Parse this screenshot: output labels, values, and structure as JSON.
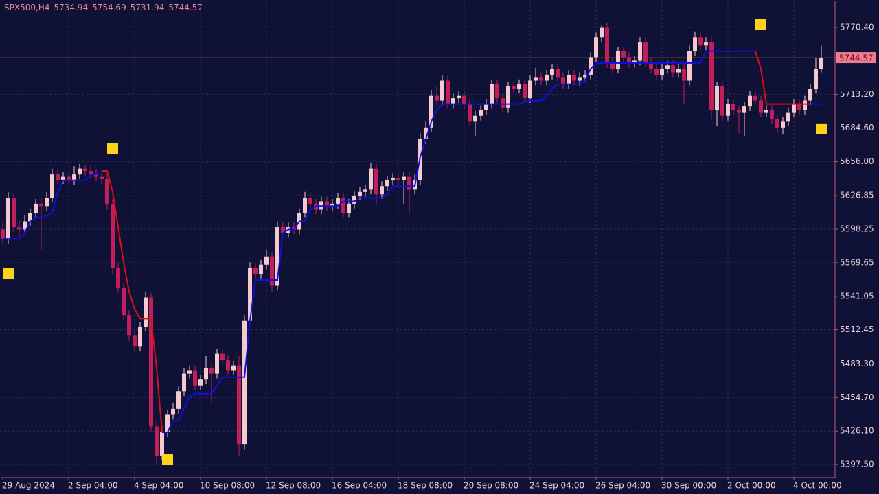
{
  "chart_data": {
    "type": "candlestick",
    "symbol": "SPX500,H4",
    "categories": [
      "29 Aug 2024",
      null,
      null,
      null,
      null,
      null,
      null,
      null,
      null,
      null,
      null,
      null,
      "2 Sep 04:00",
      null,
      null,
      null,
      null,
      null,
      null,
      null,
      null,
      null,
      null,
      null,
      "4 Sep 04:00",
      null,
      null,
      null,
      null,
      null,
      null,
      null,
      null,
      null,
      null,
      null,
      "10 Sep 08:00",
      null,
      null,
      null,
      null,
      null,
      null,
      null,
      null,
      null,
      null,
      null,
      "12 Sep 08:00",
      null,
      null,
      null,
      null,
      null,
      null,
      null,
      null,
      null,
      null,
      null,
      "16 Sep 04:00",
      null,
      null,
      null,
      null,
      null,
      null,
      null,
      null,
      null,
      null,
      null,
      "18 Sep 08:00",
      null,
      null,
      null,
      null,
      null,
      null,
      null,
      null,
      null,
      null,
      null,
      "20 Sep 08:00",
      null,
      null,
      null,
      null,
      null,
      null,
      null,
      null,
      null,
      null,
      null,
      "24 Sep 04:00",
      null,
      null,
      null,
      null,
      null,
      null,
      null,
      null,
      null,
      null,
      null,
      "26 Sep 04:00",
      null,
      null,
      null,
      null,
      null,
      null,
      null,
      null,
      null,
      null,
      null,
      "30 Sep 00:00",
      null,
      null,
      null,
      null,
      null,
      null,
      null,
      null,
      null,
      null,
      null,
      "2 Oct 00:00",
      null,
      null,
      null,
      null,
      null,
      null,
      null,
      null,
      null,
      null,
      null,
      "4 Oct 00:00",
      null,
      null,
      null,
      null,
      null
    ],
    "open": [
      5598,
      5590,
      5625,
      5600,
      5598,
      5605,
      5612,
      5620,
      5618,
      5625,
      5645,
      5640,
      5643,
      5640,
      5645,
      5650,
      5648,
      5645,
      5643,
      5641,
      5620,
      5565,
      5548,
      5525,
      5508,
      5498,
      5515,
      5540,
      5430,
      5405,
      5425,
      5440,
      5445,
      5460,
      5475,
      5478,
      5465,
      5470,
      5480,
      5475,
      5492,
      5487,
      5478,
      5482,
      5415,
      5520,
      5565,
      5560,
      5568,
      5575,
      5550,
      5600,
      5595,
      5600,
      5598,
      5612,
      5625,
      5620,
      5615,
      5622,
      5618,
      5620,
      5625,
      5612,
      5620,
      5627,
      5630,
      5632,
      5650,
      5628,
      5635,
      5640,
      5642,
      5640,
      5643,
      5632,
      5640,
      5675,
      5685,
      5712,
      5708,
      5725,
      5705,
      5710,
      5712,
      5705,
      5690,
      5695,
      5700,
      5705,
      5722,
      5710,
      5702,
      5720,
      5718,
      5722,
      5710,
      5725,
      5728,
      5725,
      5730,
      5735,
      5728,
      5722,
      5730,
      5725,
      5728,
      5730,
      5745,
      5762,
      5770,
      5740,
      5735,
      5750,
      5745,
      5740,
      5742,
      5758,
      5740,
      5735,
      5730,
      5735,
      5738,
      5732,
      5735,
      5725,
      5750,
      5762,
      5755,
      5758,
      5700,
      5720,
      5695,
      5705,
      5700,
      5698,
      5703,
      5712,
      5708,
      5698,
      5700,
      5692,
      5685,
      5690,
      5698,
      5705,
      5700,
      5708,
      5718,
      5734.94
    ],
    "high": [
      5604,
      5630,
      5629,
      5606,
      5610,
      5616,
      5624,
      5625,
      5630,
      5650,
      5649,
      5647,
      5646,
      5652,
      5654,
      5653,
      5652,
      5649,
      5646,
      5645,
      5624,
      5570,
      5552,
      5529,
      5512,
      5519,
      5545,
      5544,
      5434,
      5430,
      5444,
      5450,
      5464,
      5480,
      5482,
      5482,
      5474,
      5490,
      5484,
      5496,
      5496,
      5491,
      5486,
      5490,
      5525,
      5570,
      5569,
      5572,
      5580,
      5579,
      5605,
      5604,
      5604,
      5604,
      5616,
      5630,
      5629,
      5624,
      5626,
      5626,
      5624,
      5629,
      5629,
      5624,
      5631,
      5634,
      5636,
      5655,
      5654,
      5639,
      5644,
      5646,
      5646,
      5647,
      5647,
      5645,
      5680,
      5690,
      5717,
      5720,
      5730,
      5729,
      5714,
      5716,
      5716,
      5709,
      5699,
      5704,
      5709,
      5726,
      5726,
      5714,
      5724,
      5724,
      5726,
      5726,
      5730,
      5736,
      5732,
      5734,
      5739,
      5739,
      5732,
      5734,
      5734,
      5732,
      5734,
      5749,
      5766,
      5772,
      5774,
      5744,
      5754,
      5754,
      5749,
      5746,
      5762,
      5762,
      5744,
      5739,
      5739,
      5742,
      5742,
      5739,
      5739,
      5755,
      5767,
      5766,
      5762,
      5762,
      5724,
      5724,
      5709,
      5709,
      5704,
      5707,
      5716,
      5716,
      5712,
      5704,
      5704,
      5696,
      5694,
      5702,
      5709,
      5709,
      5712,
      5722,
      5744,
      5754.69
    ],
    "low": [
      5585,
      5586,
      5596,
      5592,
      5594,
      5601,
      5608,
      5580,
      5614,
      5621,
      5636,
      5637,
      5636,
      5636,
      5641,
      5644,
      5641,
      5639,
      5636,
      5615,
      5560,
      5544,
      5520,
      5503,
      5494,
      5494,
      5511,
      5425,
      5398,
      5401,
      5421,
      5436,
      5441,
      5456,
      5471,
      5461,
      5461,
      5466,
      5450,
      5471,
      5483,
      5474,
      5474,
      5405,
      5410,
      5516,
      5556,
      5556,
      5564,
      5545,
      5546,
      5591,
      5591,
      5594,
      5594,
      5608,
      5616,
      5611,
      5611,
      5614,
      5614,
      5616,
      5608,
      5608,
      5616,
      5623,
      5626,
      5628,
      5620,
      5624,
      5631,
      5636,
      5636,
      5620,
      5612,
      5628,
      5636,
      5671,
      5681,
      5704,
      5704,
      5701,
      5701,
      5706,
      5701,
      5686,
      5678,
      5691,
      5696,
      5701,
      5706,
      5698,
      5698,
      5714,
      5714,
      5706,
      5706,
      5721,
      5721,
      5721,
      5726,
      5724,
      5718,
      5718,
      5721,
      5720,
      5724,
      5726,
      5741,
      5758,
      5736,
      5731,
      5731,
      5741,
      5736,
      5736,
      5738,
      5736,
      5731,
      5726,
      5726,
      5731,
      5728,
      5728,
      5705,
      5721,
      5746,
      5751,
      5751,
      5692,
      5686,
      5690,
      5691,
      5696,
      5680,
      5678,
      5699,
      5704,
      5694,
      5694,
      5688,
      5681,
      5679,
      5686,
      5694,
      5696,
      5696,
      5704,
      5714,
      5731.94
    ],
    "close": [
      5590,
      5625,
      5600,
      5598,
      5605,
      5612,
      5620,
      5618,
      5625,
      5645,
      5640,
      5643,
      5640,
      5645,
      5650,
      5648,
      5645,
      5643,
      5641,
      5620,
      5565,
      5548,
      5525,
      5508,
      5498,
      5515,
      5540,
      5430,
      5405,
      5425,
      5440,
      5445,
      5460,
      5475,
      5478,
      5465,
      5470,
      5480,
      5475,
      5492,
      5487,
      5478,
      5482,
      5415,
      5520,
      5565,
      5560,
      5568,
      5575,
      5550,
      5600,
      5595,
      5600,
      5598,
      5612,
      5625,
      5620,
      5615,
      5622,
      5618,
      5620,
      5625,
      5612,
      5620,
      5627,
      5630,
      5632,
      5650,
      5628,
      5635,
      5640,
      5642,
      5640,
      5643,
      5632,
      5640,
      5675,
      5685,
      5712,
      5708,
      5725,
      5705,
      5710,
      5712,
      5705,
      5690,
      5695,
      5700,
      5705,
      5722,
      5710,
      5702,
      5720,
      5718,
      5722,
      5710,
      5725,
      5728,
      5725,
      5730,
      5735,
      5728,
      5722,
      5730,
      5725,
      5728,
      5730,
      5745,
      5762,
      5770,
      5740,
      5735,
      5750,
      5745,
      5740,
      5742,
      5758,
      5740,
      5735,
      5730,
      5735,
      5738,
      5732,
      5735,
      5725,
      5750,
      5762,
      5755,
      5758,
      5700,
      5720,
      5695,
      5705,
      5700,
      5698,
      5703,
      5712,
      5708,
      5698,
      5700,
      5692,
      5685,
      5690,
      5698,
      5705,
      5700,
      5708,
      5718,
      5735,
      5744.57
    ],
    "up_color": "#f6c9cf",
    "down_color": "#c21e5a",
    "lines": [
      {
        "color": "#1010e0",
        "values": [
          5590,
          5590,
          5590,
          5590,
          5595,
          5605,
          5608,
          5608,
          5610,
          5612,
          5630,
          5640,
          5640,
          5640,
          5640,
          5640,
          5645,
          5645,
          5648,
          null,
          null,
          null,
          null,
          null,
          null,
          null,
          null,
          null,
          null,
          5425,
          5425,
          5435,
          5435,
          5445,
          5455,
          5458,
          5458,
          5458,
          5458,
          5465,
          5472,
          5472,
          5472,
          5472,
          5472,
          5520,
          5555,
          5555,
          5555,
          5555,
          5555,
          5595,
          5598,
          5598,
          5605,
          5605,
          5615,
          5618,
          5618,
          5618,
          5618,
          5618,
          5622,
          5622,
          5622,
          5625,
          5625,
          5625,
          5625,
          5625,
          5628,
          5635,
          5635,
          5635,
          5635,
          5635,
          5660,
          5675,
          5690,
          5700,
          5705,
          5705,
          5705,
          5705,
          5705,
          5705,
          5705,
          5705,
          5705,
          5705,
          5705,
          5705,
          5705,
          5705,
          5705,
          5707,
          5708,
          5708,
          5708,
          5712,
          5718,
          5722,
          5722,
          5722,
          5722,
          5722,
          5725,
          5735,
          5740,
          5740,
          5740,
          5740,
          5740,
          5740,
          5740,
          5740,
          5740,
          5740,
          5740,
          5740,
          5740,
          5740,
          5740,
          5740,
          5740,
          5740,
          5740,
          5740,
          5750,
          5750,
          5750,
          5750,
          5750,
          5750,
          5750,
          5750,
          5750,
          5750,
          null,
          null,
          null,
          null,
          null,
          null,
          null,
          null,
          null,
          5705,
          5705,
          5705
        ]
      },
      {
        "color": "#e01010",
        "values": [
          null,
          null,
          null,
          null,
          null,
          null,
          null,
          null,
          null,
          null,
          null,
          null,
          null,
          null,
          null,
          null,
          null,
          null,
          5648,
          5648,
          5630,
          5600,
          5570,
          5545,
          5530,
          5522,
          5522,
          5522,
          5480,
          5425,
          null,
          null,
          null,
          null,
          null,
          null,
          null,
          null,
          null,
          null,
          null,
          null,
          null,
          null,
          null,
          null,
          null,
          null,
          null,
          null,
          null,
          null,
          null,
          null,
          null,
          null,
          null,
          null,
          null,
          null,
          null,
          null,
          null,
          null,
          null,
          null,
          null,
          null,
          null,
          null,
          null,
          null,
          null,
          null,
          null,
          null,
          null,
          null,
          null,
          null,
          null,
          null,
          null,
          null,
          null,
          null,
          null,
          null,
          null,
          null,
          null,
          null,
          null,
          null,
          null,
          null,
          null,
          null,
          null,
          null,
          null,
          null,
          null,
          null,
          null,
          null,
          null,
          null,
          null,
          null,
          null,
          null,
          null,
          null,
          null,
          null,
          null,
          null,
          null,
          null,
          null,
          null,
          null,
          null,
          null,
          null,
          null,
          null,
          null,
          null,
          null,
          null,
          null,
          null,
          null,
          null,
          null,
          5750,
          5735,
          5705,
          5705,
          5705,
          5705,
          5705,
          5705,
          5705,
          5705,
          5705,
          null,
          null
        ]
      }
    ],
    "markers": {
      "color": "#ffd21a",
      "x": [
        1,
        20,
        30,
        138,
        149
      ],
      "values": [
        5560.8,
        5667,
        5401.6,
        5772.7,
        5683.8
      ]
    },
    "ylim": [
      5386.4,
      5792.6
    ],
    "yticks": [
      {
        "value": 5770.4,
        "label": "5770.40"
      },
      {
        "value": 5713.2,
        "label": "5713.20"
      },
      {
        "value": 5684.6,
        "label": "5684.60"
      },
      {
        "value": 5656,
        "label": "5656.00"
      },
      5626.85,
      5598.25,
      5569.65,
      5541.05,
      5512.45,
      {
        "value": 5483.3,
        "label": "5483.30"
      },
      {
        "value": 5454.7,
        "label": "5454.70"
      },
      {
        "value": 5426.1,
        "label": "5426.10"
      },
      {
        "value": 5397.5,
        "label": "5397.50"
      }
    ],
    "grid": true
  }
}
